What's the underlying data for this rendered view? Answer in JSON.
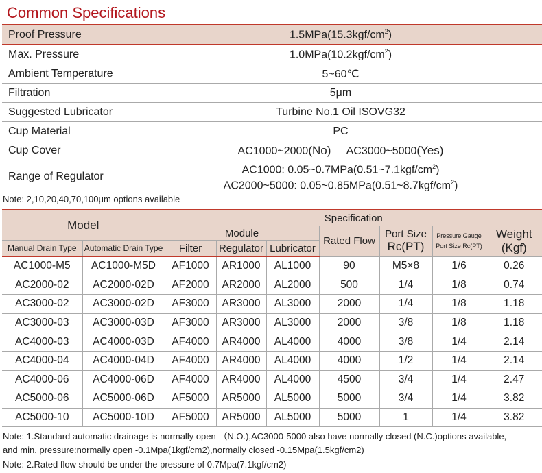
{
  "title": "Common Specifications",
  "common": [
    {
      "label": "Proof Pressure",
      "value": "1.5MPa(15.3kgf/cm",
      "sup": "2",
      ")": ")"
    },
    {
      "label": "Max. Pressure",
      "value": "1.0MPa(10.2kgf/cm",
      "sup": "2"
    },
    {
      "label": "Ambient Temperature",
      "value": "5~60℃"
    },
    {
      "label": "Filtration",
      "value": "5μm"
    },
    {
      "label": "Suggested Lubricator",
      "value": "Turbine No.1 Oil ISOVG32"
    },
    {
      "label": "Cup Material",
      "value": "PC"
    },
    {
      "label": "Cup Cover",
      "value_a": "AC1000~2000",
      "a_bold": "(No)",
      "value_b": "AC3000~5000",
      "b_bold": "(Yes)"
    },
    {
      "label": "Range of Regulator",
      "line1": "AC1000: 0.05~0.7MPa(0.51~7.1kgf/cm",
      "line2": "AC2000~5000: 0.05~0.85MPa(0.51~8.7kgf/cm",
      "sup": "2"
    }
  ],
  "note1": "Note: 2,10,20,40,70,100μm options available",
  "table": {
    "h_model": "Model",
    "h_spec": "Specification",
    "h_module": "Module",
    "h_manual": "Manual Drain Type",
    "h_auto": "Automatic Drain Type",
    "h_filter": "Filter",
    "h_regulator": "Regulator",
    "h_lubricator": "Lubricator",
    "h_flow": "Rated Flow",
    "h_port1": "Port Size",
    "h_port2": "Rc(PT)",
    "h_gauge1": "Pressure Gauge",
    "h_gauge2": "Port Size Rc(PT)",
    "h_weight1": "Weight",
    "h_weight2": "(Kgf)",
    "rows": [
      [
        "AC1000-M5",
        "AC1000-M5D",
        "AF1000",
        "AR1000",
        "AL1000",
        "90",
        "M5×8",
        "1/6",
        "0.26"
      ],
      [
        "AC2000-02",
        "AC2000-02D",
        "AF2000",
        "AR2000",
        "AL2000",
        "500",
        "1/4",
        "1/8",
        "0.74"
      ],
      [
        "AC3000-02",
        "AC3000-02D",
        "AF3000",
        "AR3000",
        "AL3000",
        "2000",
        "1/4",
        "1/8",
        "1.18"
      ],
      [
        "AC3000-03",
        "AC3000-03D",
        "AF3000",
        "AR3000",
        "AL3000",
        "2000",
        "3/8",
        "1/8",
        "1.18"
      ],
      [
        "AC4000-03",
        "AC4000-03D",
        "AF4000",
        "AR4000",
        "AL4000",
        "4000",
        "3/8",
        "1/4",
        "2.14"
      ],
      [
        "AC4000-04",
        "AC4000-04D",
        "AF4000",
        "AR4000",
        "AL4000",
        "4000",
        "1/2",
        "1/4",
        "2.14"
      ],
      [
        "AC4000-06",
        "AC4000-06D",
        "AF4000",
        "AR4000",
        "AL4000",
        "4500",
        "3/4",
        "1/4",
        "2.47"
      ],
      [
        "AC5000-06",
        "AC5000-06D",
        "AF5000",
        "AR5000",
        "AL5000",
        "5000",
        "3/4",
        "1/4",
        "3.82"
      ],
      [
        "AC5000-10",
        "AC5000-10D",
        "AF5000",
        "AR5000",
        "AL5000",
        "5000",
        "1",
        "1/4",
        "3.82"
      ]
    ]
  },
  "note2a": "Note: 1.Standard automatic drainage is normally open （N.O.),AC3000-5000 also have normally closed (N.C.)options available,",
  "note2b": "and min. pressure:normally open -0.1Mpa(1kgf/cm2),normally closed -0.15Mpa(1.5kgf/cm2)",
  "note3": "Note: 2.Rated flow should be under the pressure of 0.7Mpa(7.1kgf/cm2)"
}
